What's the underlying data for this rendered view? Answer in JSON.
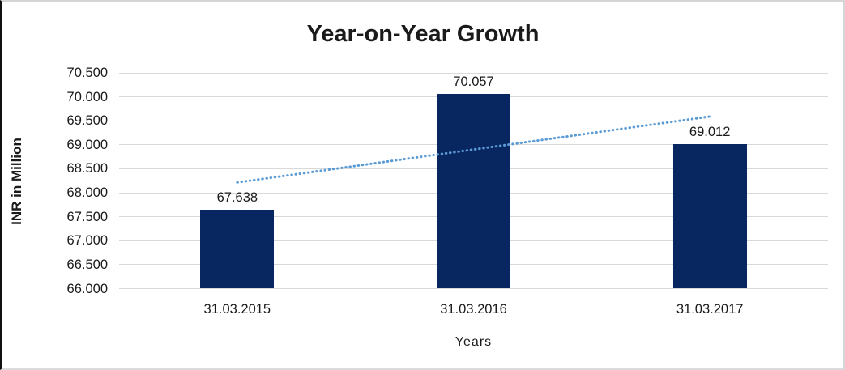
{
  "chart": {
    "title": "Year-on-Year Growth",
    "xlabel": "Years",
    "ylabel": "INR in Million"
  },
  "chart_data": {
    "type": "bar",
    "title": "Year-on-Year Growth",
    "xlabel": "Years",
    "ylabel": "INR in Million",
    "categories": [
      "31.03.2015",
      "31.03.2016",
      "31.03.2017"
    ],
    "values": [
      67.638,
      70.057,
      69.012
    ],
    "data_labels": [
      "67.638",
      "70.057",
      "69.012"
    ],
    "ylim": [
      66.0,
      70.5
    ],
    "ytick_step": 0.5,
    "ytick_labels": [
      "66.000",
      "66.500",
      "67.000",
      "67.500",
      "68.000",
      "68.500",
      "69.000",
      "69.500",
      "70.000",
      "70.500"
    ],
    "grid": true,
    "legend": "none",
    "bar_color": "#082761",
    "gridline_color": "#d9d9d9",
    "label_color": "#1a1a1a",
    "trendline": {
      "type": "linear",
      "style": "dotted",
      "color": "#5b9bd5",
      "start_value": 68.215,
      "end_value": 69.589
    }
  }
}
